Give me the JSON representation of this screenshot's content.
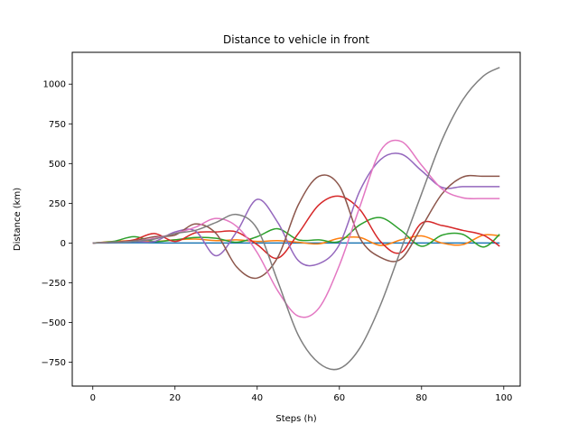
{
  "chart_data": {
    "type": "line",
    "title": "Distance to vehicle in front",
    "xlabel": "Steps (h)",
    "ylabel": "Distance (km)",
    "xlim": [
      -5,
      104
    ],
    "ylim": [
      -900,
      1200
    ],
    "xticks": [
      0,
      20,
      40,
      60,
      80,
      100
    ],
    "yticks": [
      -750,
      -500,
      -250,
      0,
      250,
      500,
      750,
      1000
    ],
    "grid": false,
    "x": [
      0,
      5,
      10,
      15,
      20,
      25,
      30,
      35,
      40,
      45,
      50,
      55,
      60,
      65,
      70,
      75,
      80,
      85,
      90,
      95,
      99
    ],
    "series": [
      {
        "color": "#1f77b4",
        "values": [
          0,
          1,
          2,
          1,
          0,
          0,
          0,
          0,
          0,
          0,
          0,
          0,
          0,
          0,
          0,
          0,
          0,
          0,
          0,
          0,
          0
        ]
      },
      {
        "color": "#ff7f0e",
        "values": [
          0,
          10,
          15,
          10,
          20,
          25,
          15,
          20,
          10,
          15,
          5,
          -5,
          30,
          35,
          -15,
          20,
          45,
          0,
          -10,
          50,
          45
        ]
      },
      {
        "color": "#2ca02c",
        "values": [
          0,
          10,
          40,
          10,
          20,
          35,
          30,
          5,
          40,
          90,
          20,
          20,
          10,
          115,
          160,
          80,
          -20,
          50,
          55,
          -25,
          55
        ]
      },
      {
        "color": "#d62728",
        "values": [
          0,
          5,
          20,
          60,
          10,
          65,
          70,
          70,
          -10,
          -95,
          60,
          240,
          295,
          210,
          10,
          -60,
          125,
          110,
          80,
          50,
          -20
        ]
      },
      {
        "color": "#9467bd",
        "values": [
          0,
          5,
          10,
          10,
          70,
          75,
          -80,
          70,
          275,
          130,
          -110,
          -130,
          -10,
          330,
          525,
          560,
          455,
          350,
          355,
          355,
          355
        ]
      },
      {
        "color": "#8c564b",
        "values": [
          0,
          5,
          15,
          40,
          50,
          120,
          60,
          -150,
          -220,
          -90,
          240,
          420,
          360,
          30,
          -90,
          -100,
          100,
          310,
          415,
          420,
          420
        ]
      },
      {
        "color": "#e377c2",
        "values": [
          0,
          5,
          10,
          30,
          60,
          100,
          155,
          105,
          -60,
          -300,
          -460,
          -410,
          -140,
          230,
          580,
          640,
          490,
          340,
          285,
          280,
          280
        ]
      },
      {
        "color": "#7f7f7f",
        "values": [
          0,
          5,
          10,
          25,
          60,
          80,
          130,
          180,
          90,
          -240,
          -580,
          -755,
          -790,
          -660,
          -390,
          -40,
          310,
          650,
          900,
          1050,
          1105
        ]
      }
    ]
  }
}
